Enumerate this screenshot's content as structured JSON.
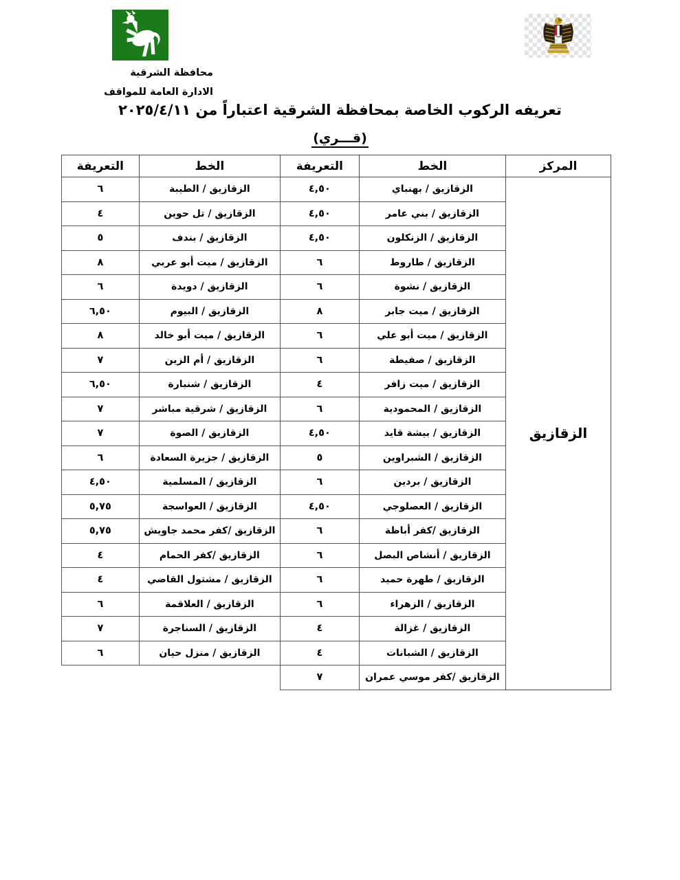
{
  "header": {
    "org_name": "محافظة الشرقية",
    "org_dept": "الادارة العامة للمواقف",
    "title": "تعريفه الركوب الخاصة بمحافظة الشرقية اعتباراً من ٢٠٢٥/٤/١١",
    "subtitle": "(قـــري)"
  },
  "icons": {
    "governorate_logo": "white-rearing-horse-on-green-square",
    "egypt_emblem": "eagle-of-saladin-with-egypt-flag-shield"
  },
  "colors": {
    "logo_green": "#1b7b1b",
    "emblem_gold": "#c9a227",
    "emblem_dark": "#2a2013",
    "emblem_red": "#ce1126",
    "table_border": "#555555"
  },
  "table": {
    "headers": {
      "tariff": "التعريفة",
      "line": "الخط",
      "center": "المركز"
    },
    "center_label": "الزقازيق",
    "rows": [
      {
        "line1": "الزقازيق / بهنباي",
        "fare1": "٤,٥٠",
        "line2": "الزقازيق / الطيبة",
        "fare2": "٦"
      },
      {
        "line1": "الزقازيق / بني عامر",
        "fare1": "٤,٥٠",
        "line2": "الزقازيق / تل حوين",
        "fare2": "٤"
      },
      {
        "line1": "الزقازيق / الزنكلون",
        "fare1": "٤,٥٠",
        "line2": "الزقازيق / بندف",
        "fare2": "٥"
      },
      {
        "line1": "الزقازيق / طاروط",
        "fare1": "٦",
        "line2": "الزقازيق / ميت أبو عربي",
        "fare2": "٨"
      },
      {
        "line1": "الزقازيق / نشوة",
        "fare1": "٦",
        "line2": "الزقازيق / دويدة",
        "fare2": "٦"
      },
      {
        "line1": "الزقازيق / ميت جابر",
        "fare1": "٨",
        "line2": "الزقازيق / البيوم",
        "fare2": "٦,٥٠"
      },
      {
        "line1": "الزقازيق / ميت أبو علي",
        "fare1": "٦",
        "line2": "الزقازيق / ميت أبو خالد",
        "fare2": "٨"
      },
      {
        "line1": "الزقازيق / صفيطة",
        "fare1": "٦",
        "line2": "الزقازيق / أم الزين",
        "fare2": "٧"
      },
      {
        "line1": "الزقازيق / ميت زافر",
        "fare1": "٤",
        "line2": "الزقازيق / شنبارة",
        "fare2": "٦,٥٠"
      },
      {
        "line1": "الزقازيق / المحمودية",
        "fare1": "٦",
        "line2": "الزقازيق / شرقية مباشر",
        "fare2": "٧"
      },
      {
        "line1": "الزقازيق / بيشة قايد",
        "fare1": "٤,٥٠",
        "line2": "الزقازيق / الصوة",
        "fare2": "٧"
      },
      {
        "line1": "الزقازيق / الشبراوين",
        "fare1": "٥",
        "line2": "الزقازيق / جزيرة السعادة",
        "fare2": "٦"
      },
      {
        "line1": "الزقازيق / بردين",
        "fare1": "٦",
        "line2": "الزقازيق / المسلمية",
        "fare2": "٤,٥٠"
      },
      {
        "line1": "الزقازيق / العصلوجي",
        "fare1": "٤,٥٠",
        "line2": "الزقازيق / العواسجة",
        "fare2": "٥,٧٥"
      },
      {
        "line1": "الزقازيق /كفر أباظة",
        "fare1": "٦",
        "line2": "الزقازيق /كفر محمد جاويش",
        "fare2": "٥,٧٥"
      },
      {
        "line1": "الزقازيق / أنشاص البصل",
        "fare1": "٦",
        "line2": "الزقازيق /كفر الحمام",
        "fare2": "٤"
      },
      {
        "line1": "الزقازيق / طهرة حميد",
        "fare1": "٦",
        "line2": "الزقازيق / مشتول القاضي",
        "fare2": "٤"
      },
      {
        "line1": "الزقازيق / الزهراء",
        "fare1": "٦",
        "line2": "الزقازيق / العلاقمة",
        "fare2": "٦"
      },
      {
        "line1": "الزقازيق / غزالة",
        "fare1": "٤",
        "line2": "الزقازيق / السناجرة",
        "fare2": "٧"
      },
      {
        "line1": "الزقازيق / الشبانات",
        "fare1": "٤",
        "line2": "الزقازيق / منزل حيان",
        "fare2": "٦"
      },
      {
        "line1": "الزقازيق /كفر موسي عمران",
        "fare1": "٧",
        "line2": null,
        "fare2": null
      }
    ]
  }
}
